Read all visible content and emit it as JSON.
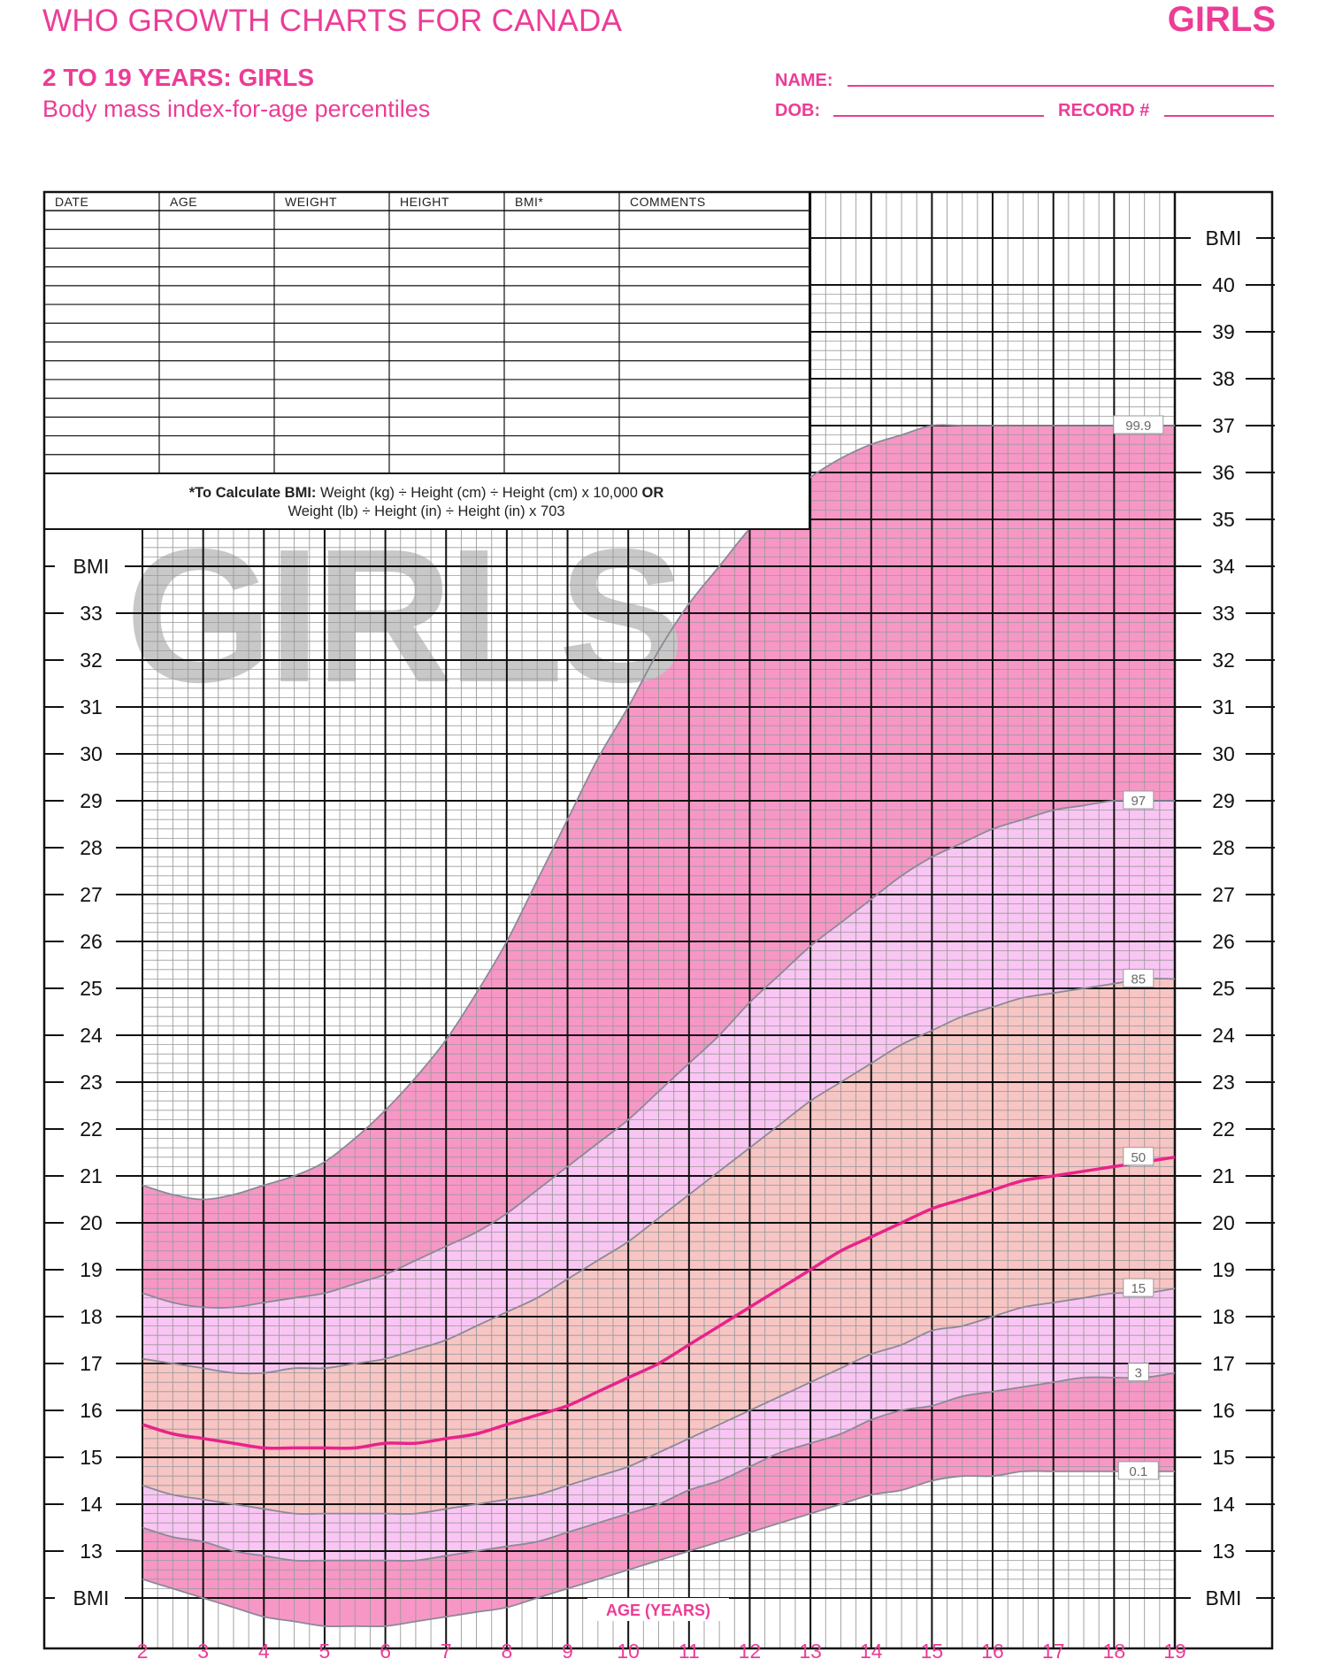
{
  "header": {
    "title": "WHO GROWTH CHARTS FOR CANADA",
    "corner_label": "GIRLS",
    "subtitle": "2 TO 19 YEARS: GIRLS",
    "description": "Body mass index-for-age percentiles"
  },
  "form": {
    "name_label": "NAME:",
    "dob_label": "DOB:",
    "record_label": "RECORD #"
  },
  "record_table": {
    "columns": [
      "DATE",
      "AGE",
      "WEIGHT",
      "HEIGHT",
      "BMI*",
      "COMMENTS"
    ],
    "formula_line1_bold": "*To Calculate BMI:",
    "formula_line1": "Weight (kg) ÷ Height (cm) ÷ Height (cm) x 10,000",
    "formula_line1_or": "OR",
    "formula_line2": "Weight (lb) ÷ Height (in) ÷ Height (in) x 703"
  },
  "watermark": "GIRLS",
  "colors": {
    "brand_pink": "#ec3c96",
    "band_outer": "#f797c6",
    "band_mid": "#f9c5f3",
    "band_inner": "#f7c5c3",
    "median_line": "#e8238a",
    "grid": "#111111",
    "minor_grid": "#9a9a9a",
    "watermark": "#c8c8c8"
  },
  "chart_data": {
    "type": "line",
    "xlabel": "AGE (YEARS)",
    "ylabel": "BMI",
    "xlim": [
      2,
      19
    ],
    "ylim": [
      12,
      41
    ],
    "left_axis_range": [
      12,
      34
    ],
    "x_ticks": [
      2,
      3,
      4,
      5,
      6,
      7,
      8,
      9,
      10,
      11,
      12,
      13,
      14,
      15,
      16,
      17,
      18,
      19
    ],
    "y_ticks": [
      13,
      14,
      15,
      16,
      17,
      18,
      19,
      20,
      21,
      22,
      23,
      24,
      25,
      26,
      27,
      28,
      29,
      30,
      31,
      32,
      33,
      34,
      35,
      36,
      37,
      38,
      39,
      40
    ],
    "axis_unit_label": "BMI",
    "x": [
      2,
      2.5,
      3,
      3.5,
      4,
      4.5,
      5,
      5.5,
      6,
      6.5,
      7,
      7.5,
      8,
      8.5,
      9,
      9.5,
      10,
      10.5,
      11,
      11.5,
      12,
      12.5,
      13,
      13.5,
      14,
      14.5,
      15,
      15.5,
      16,
      16.5,
      17,
      17.5,
      18,
      18.5,
      19
    ],
    "series": [
      {
        "name": "99.9",
        "values": [
          20.8,
          20.6,
          20.5,
          20.6,
          20.8,
          21.0,
          21.3,
          21.8,
          22.4,
          23.1,
          23.9,
          24.9,
          26.0,
          27.3,
          28.6,
          29.9,
          31.0,
          32.2,
          33.2,
          34.0,
          34.8,
          35.4,
          35.9,
          36.3,
          36.6,
          36.8,
          37.0,
          37.0,
          37.0,
          37.0,
          37.0,
          37.0,
          37.0,
          37.0,
          37.0
        ]
      },
      {
        "name": "97",
        "values": [
          18.5,
          18.3,
          18.2,
          18.2,
          18.3,
          18.4,
          18.5,
          18.7,
          18.9,
          19.2,
          19.5,
          19.8,
          20.2,
          20.7,
          21.2,
          21.7,
          22.2,
          22.8,
          23.4,
          24.0,
          24.7,
          25.3,
          25.9,
          26.4,
          26.9,
          27.4,
          27.8,
          28.1,
          28.4,
          28.6,
          28.8,
          28.9,
          29.0,
          29.0,
          29.0
        ]
      },
      {
        "name": "85",
        "values": [
          17.1,
          17.0,
          16.9,
          16.8,
          16.8,
          16.9,
          16.9,
          17.0,
          17.1,
          17.3,
          17.5,
          17.8,
          18.1,
          18.4,
          18.8,
          19.2,
          19.6,
          20.1,
          20.6,
          21.1,
          21.6,
          22.1,
          22.6,
          23.0,
          23.4,
          23.8,
          24.1,
          24.4,
          24.6,
          24.8,
          24.9,
          25.0,
          25.1,
          25.2,
          25.2
        ]
      },
      {
        "name": "50",
        "values": [
          15.7,
          15.5,
          15.4,
          15.3,
          15.2,
          15.2,
          15.2,
          15.2,
          15.3,
          15.3,
          15.4,
          15.5,
          15.7,
          15.9,
          16.1,
          16.4,
          16.7,
          17.0,
          17.4,
          17.8,
          18.2,
          18.6,
          19.0,
          19.4,
          19.7,
          20.0,
          20.3,
          20.5,
          20.7,
          20.9,
          21.0,
          21.1,
          21.2,
          21.3,
          21.4
        ]
      },
      {
        "name": "15",
        "values": [
          14.4,
          14.2,
          14.1,
          14.0,
          13.9,
          13.8,
          13.8,
          13.8,
          13.8,
          13.8,
          13.9,
          14.0,
          14.1,
          14.2,
          14.4,
          14.6,
          14.8,
          15.1,
          15.4,
          15.7,
          16.0,
          16.3,
          16.6,
          16.9,
          17.2,
          17.4,
          17.7,
          17.8,
          18.0,
          18.2,
          18.3,
          18.4,
          18.5,
          18.5,
          18.6
        ]
      },
      {
        "name": "3",
        "values": [
          13.5,
          13.3,
          13.2,
          13.0,
          12.9,
          12.8,
          12.8,
          12.8,
          12.8,
          12.8,
          12.9,
          13.0,
          13.1,
          13.2,
          13.4,
          13.6,
          13.8,
          14.0,
          14.3,
          14.5,
          14.8,
          15.1,
          15.3,
          15.5,
          15.8,
          16.0,
          16.1,
          16.3,
          16.4,
          16.5,
          16.6,
          16.7,
          16.7,
          16.7,
          16.8
        ]
      },
      {
        "name": "0.1",
        "values": [
          12.4,
          12.2,
          12.0,
          11.8,
          11.6,
          11.5,
          11.4,
          11.4,
          11.4,
          11.5,
          11.6,
          11.7,
          11.8,
          12.0,
          12.2,
          12.4,
          12.6,
          12.8,
          13.0,
          13.2,
          13.4,
          13.6,
          13.8,
          14.0,
          14.2,
          14.3,
          14.5,
          14.6,
          14.6,
          14.7,
          14.7,
          14.7,
          14.7,
          14.7,
          14.7
        ]
      }
    ]
  }
}
